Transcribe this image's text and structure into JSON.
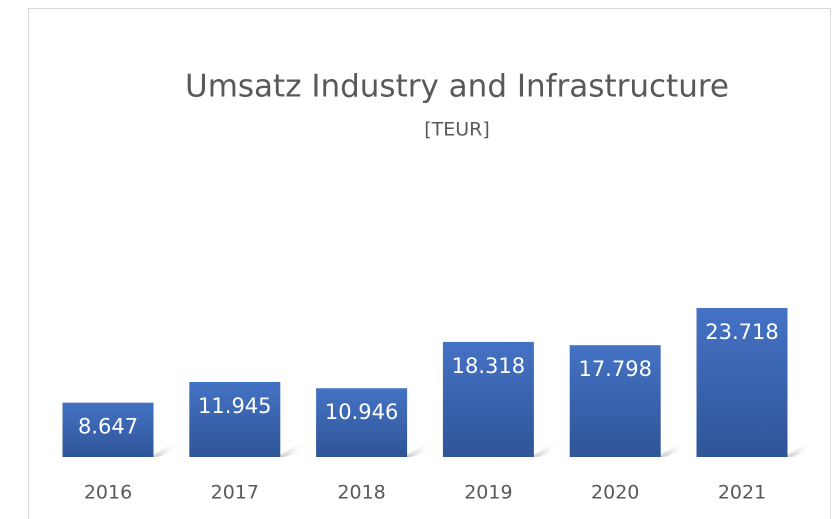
{
  "chart_data": {
    "type": "bar",
    "title": "Umsatz Industry and Infrastructure",
    "subtitle": "[TEUR]",
    "categories": [
      "2016",
      "2017",
      "2018",
      "2019",
      "2020",
      "2021"
    ],
    "values": [
      8647,
      11945,
      10946,
      18318,
      17798,
      23718
    ],
    "value_labels": [
      "8.647",
      "11.945",
      "10.946",
      "18.318",
      "17.798",
      "23.718"
    ],
    "color": "#4472c4"
  }
}
